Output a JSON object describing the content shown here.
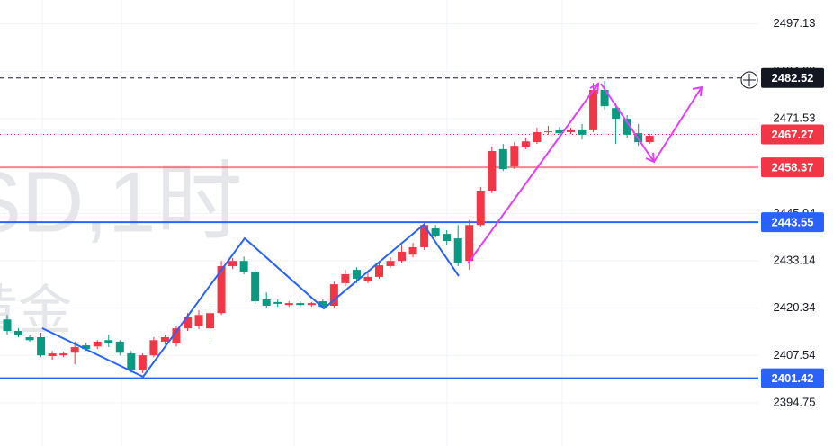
{
  "chart_data": {
    "type": "candlestick",
    "watermark": [
      "SD,1时",
      "黄金"
    ],
    "up_color": "#f23645",
    "down_color": "#089981",
    "ylim": [
      2383.1,
      2503.6
    ],
    "yticks": [
      2497.13,
      2484.33,
      2471.53,
      2445.94,
      2433.14,
      2420.34,
      2407.54,
      2394.75
    ],
    "grid": true,
    "open": [
      2417.3,
      2414.2,
      2412.5,
      2412.5,
      2407.4,
      2407.6,
      2408.3,
      2410.3,
      2410.0,
      2411.7,
      2411.3,
      2408.1,
      2403.5,
      2407.6,
      2411.3,
      2410.8,
      2414.9,
      2415.6,
      2414.9,
      2419.0,
      2431.7,
      2433.1,
      2430.2,
      2422.7,
      2422.0,
      2421.2,
      2421.7,
      2421.2,
      2422.2,
      2421.0,
      2427.1,
      2430.7,
      2427.8,
      2428.8,
      2431.7,
      2433.1,
      2434.8,
      2436.8,
      2441.9,
      2440.4,
      2439.2,
      2433.1,
      2442.8,
      2452.1,
      2463.3,
      2458.6,
      2464.0,
      2465.2,
      2467.9,
      2468.4,
      2467.9,
      2468.4,
      2468.4,
      2479.3,
      2474.4,
      2471.5,
      2467.6,
      2465.2
    ],
    "high": [
      2418.5,
      2414.9,
      2413.2,
      2413.7,
      2408.8,
      2408.6,
      2411.3,
      2411.0,
      2411.7,
      2413.2,
      2411.7,
      2408.8,
      2408.1,
      2412.5,
      2413.2,
      2415.6,
      2419.0,
      2419.8,
      2421.0,
      2433.1,
      2433.9,
      2434.3,
      2430.7,
      2424.6,
      2422.7,
      2422.2,
      2422.2,
      2422.0,
      2422.7,
      2427.5,
      2430.7,
      2431.4,
      2430.0,
      2432.6,
      2434.1,
      2437.3,
      2438.0,
      2443.6,
      2442.8,
      2441.4,
      2442.8,
      2444.1,
      2453.1,
      2464.0,
      2464.7,
      2465.2,
      2466.4,
      2469.1,
      2469.6,
      2469.3,
      2469.1,
      2470.1,
      2481.2,
      2481.7,
      2475.7,
      2472.5,
      2470.1,
      2467.4
    ],
    "low": [
      2413.2,
      2412.5,
      2411.3,
      2407.1,
      2406.4,
      2407.1,
      2405.2,
      2408.8,
      2409.3,
      2409.8,
      2407.6,
      2402.9,
      2402.8,
      2407.1,
      2410.5,
      2410.0,
      2414.2,
      2414.7,
      2411.3,
      2418.5,
      2430.9,
      2429.5,
      2421.5,
      2420.3,
      2420.7,
      2420.7,
      2420.7,
      2420.7,
      2420.3,
      2420.5,
      2426.3,
      2427.1,
      2427.1,
      2428.3,
      2431.2,
      2432.6,
      2434.1,
      2436.1,
      2439.4,
      2437.5,
      2431.7,
      2430.7,
      2442.4,
      2451.4,
      2457.4,
      2457.9,
      2463.3,
      2464.7,
      2467.2,
      2467.2,
      2467.4,
      2465.9,
      2467.9,
      2474.0,
      2464.7,
      2466.4,
      2464.2,
      2464.7
    ],
    "close": [
      2414.2,
      2413.2,
      2411.7,
      2407.6,
      2408.1,
      2408.1,
      2409.8,
      2409.3,
      2411.3,
      2410.8,
      2408.3,
      2403.5,
      2407.6,
      2411.7,
      2412.5,
      2414.9,
      2418.1,
      2418.5,
      2419.0,
      2431.7,
      2433.1,
      2430.2,
      2422.2,
      2421.0,
      2421.5,
      2421.7,
      2421.2,
      2421.7,
      2420.7,
      2426.8,
      2429.5,
      2428.3,
      2428.8,
      2431.9,
      2433.1,
      2435.6,
      2436.8,
      2442.8,
      2439.9,
      2438.5,
      2432.6,
      2442.8,
      2452.1,
      2462.8,
      2457.9,
      2464.2,
      2465.4,
      2467.9,
      2468.1,
      2467.6,
      2468.4,
      2467.2,
      2479.3,
      2474.9,
      2471.5,
      2467.2,
      2465.2,
      2466.9
    ],
    "price_lines": [
      {
        "value": 2482.52,
        "color": "#131722",
        "style": "dashed"
      },
      {
        "value": 2467.27,
        "color": "#f23645",
        "style": "dotted"
      },
      {
        "value": 2458.37,
        "color": "#f23645",
        "style": "solid"
      },
      {
        "value": 2443.55,
        "color": "#2962ff",
        "style": "solid"
      },
      {
        "value": 2401.42,
        "color": "#2962ff",
        "style": "solid"
      }
    ]
  }
}
